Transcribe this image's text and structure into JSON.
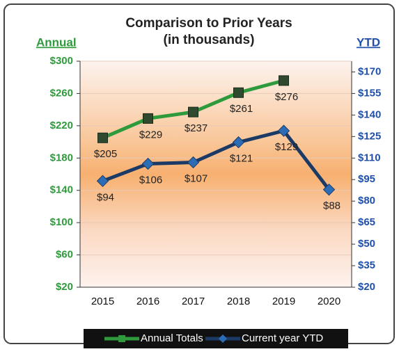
{
  "chart_data": {
    "type": "line",
    "title": "Comparison to Prior Years",
    "subtitle": "(in thousands)",
    "y_label": "Annual",
    "y2_label": "YTD",
    "categories": [
      "2015",
      "2016",
      "2017",
      "2018",
      "2019",
      "2020"
    ],
    "series": [
      {
        "name": "Annual Totals",
        "color": "#2f9a3c",
        "marker_color": "#2f4a2f",
        "marker": "square",
        "values": [
          205,
          229,
          237,
          261,
          276,
          null
        ],
        "value_labels": [
          "$205",
          "$229",
          "$237",
          "$261",
          "$276",
          null
        ]
      },
      {
        "name": "Current year YTD",
        "color": "#1c3a66",
        "marker_color": "#2b6cb5",
        "marker": "diamond",
        "axis": "y2",
        "values": [
          94,
          106,
          107,
          121,
          129,
          88
        ],
        "value_labels": [
          "$94",
          "$106",
          "$107",
          "$121",
          "$129",
          "$88"
        ]
      }
    ],
    "ylim": [
      20,
      300
    ],
    "yticks": [
      {
        "value": 20,
        "label": "$20"
      },
      {
        "value": 60,
        "label": "$60"
      },
      {
        "value": 100,
        "label": "$100"
      },
      {
        "value": 140,
        "label": "$140"
      },
      {
        "value": 180,
        "label": "$180"
      },
      {
        "value": 220,
        "label": "$220"
      },
      {
        "value": 260,
        "label": "$260"
      },
      {
        "value": 300,
        "label": "$300"
      }
    ],
    "y2lim": [
      20,
      177.5
    ],
    "y2ticks": [
      {
        "value": 20,
        "label": "$20"
      },
      {
        "value": 35,
        "label": "$35"
      },
      {
        "value": 50,
        "label": "$50"
      },
      {
        "value": 65,
        "label": "$65"
      },
      {
        "value": 80,
        "label": "$80"
      },
      {
        "value": 95,
        "label": "$95"
      },
      {
        "value": 110,
        "label": "$110"
      },
      {
        "value": 125,
        "label": "$125"
      },
      {
        "value": 140,
        "label": "$140"
      },
      {
        "value": 155,
        "label": "$155"
      },
      {
        "value": 170,
        "label": "$170"
      }
    ],
    "grid": true,
    "legend": "bottom"
  }
}
